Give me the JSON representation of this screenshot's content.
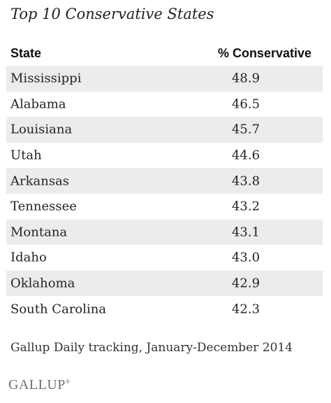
{
  "chart_data": {
    "type": "table",
    "title": "Top 10 Conservative States",
    "columns": [
      "State",
      "% Conservative"
    ],
    "rows": [
      {
        "state": "Mississippi",
        "value": "48.9"
      },
      {
        "state": "Alabama",
        "value": "46.5"
      },
      {
        "state": "Louisiana",
        "value": "45.7"
      },
      {
        "state": "Utah",
        "value": "44.6"
      },
      {
        "state": "Arkansas",
        "value": "43.8"
      },
      {
        "state": "Tennessee",
        "value": "43.2"
      },
      {
        "state": "Montana",
        "value": "43.1"
      },
      {
        "state": "Idaho",
        "value": "43.0"
      },
      {
        "state": "Oklahoma",
        "value": "42.9"
      },
      {
        "state": "South Carolina",
        "value": "42.3"
      }
    ],
    "source": "Gallup Daily tracking, January-December 2014",
    "logo": "GALLUP",
    "row_shading": "#ececec"
  }
}
